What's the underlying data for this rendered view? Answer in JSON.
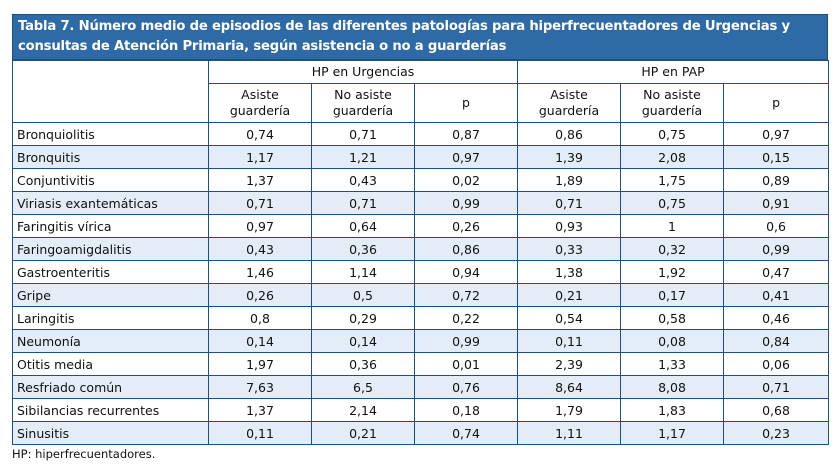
{
  "title": "Tabla 7. Número medio de episodios de las diferentes patologías para hiperfrecuentadores de Urgencias y consultas de Atención Primaria, según asistencia o no a guarderías",
  "groups": [
    "HP en Urgencias",
    "HP en PAP"
  ],
  "subheaders": [
    "Asiste guardería",
    "No asiste guardería",
    "p",
    "Asiste guardería",
    "No asiste guardería",
    "p"
  ],
  "rows": [
    [
      "Bronquiolitis",
      "0,74",
      "0,71",
      "0,87",
      "0,86",
      "0,75",
      "0,97"
    ],
    [
      "Bronquitis",
      "1,17",
      "1,21",
      "0,97",
      "1,39",
      "2,08",
      "0,15"
    ],
    [
      "Conjuntivitis",
      "1,37",
      "0,43",
      "0,02",
      "1,89",
      "1,75",
      "0,89"
    ],
    [
      "Viriasis exantemáticas",
      "0,71",
      "0,71",
      "0,99",
      "0,71",
      "0,75",
      "0,91"
    ],
    [
      "Faringitis vírica",
      "0,97",
      "0,64",
      "0,26",
      "0,93",
      "1",
      "0,6"
    ],
    [
      "Faringoamigdalitis",
      "0,43",
      "0,36",
      "0,86",
      "0,33",
      "0,32",
      "0,99"
    ],
    [
      "Gastroenteritis",
      "1,46",
      "1,14",
      "0,94",
      "1,38",
      "1,92",
      "0,47"
    ],
    [
      "Gripe",
      "0,26",
      "0,5",
      "0,72",
      "0,21",
      "0,17",
      "0,41"
    ],
    [
      "Laringitis",
      "0,8",
      "0,29",
      "0,22",
      "0,54",
      "0,58",
      "0,46"
    ],
    [
      "Neumonía",
      "0,14",
      "0,14",
      "0,99",
      "0,11",
      "0,08",
      "0,84"
    ],
    [
      "Otitis media",
      "1,97",
      "0,36",
      "0,01",
      "2,39",
      "1,33",
      "0,06"
    ],
    [
      "Resfriado común",
      "7,63",
      "6,5",
      "0,76",
      "8,64",
      "8,08",
      "0,71"
    ],
    [
      "Sibilancias recurrentes",
      "1,37",
      "2,14",
      "0,18",
      "1,79",
      "1,83",
      "0,68"
    ],
    [
      "Sinusitis",
      "0,11",
      "0,21",
      "0,74",
      "1,11",
      "1,17",
      "0,23"
    ]
  ],
  "footnote": "HP: hiperfrecuentadores.",
  "colors": {
    "header": "#2d6aa6",
    "border": "#1c4f87",
    "alt_row": "#e4edf7"
  }
}
